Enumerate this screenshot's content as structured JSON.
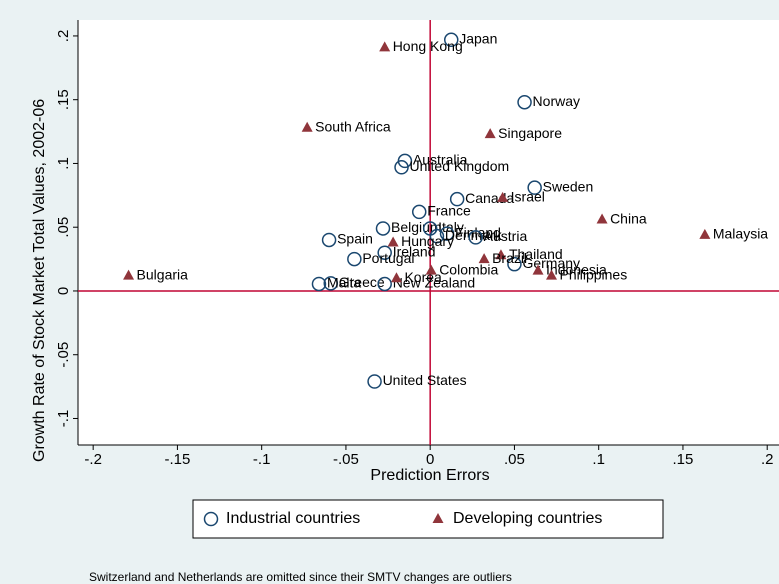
{
  "chart_data": {
    "type": "scatter",
    "y_label": "Growth Rate of Stock Market Total Values, 2002-06",
    "x_label": "Prediction Errors",
    "note": "Switzerland and Netherlands are omitted since their SMTV changes are outliers",
    "xlim": [
      -0.209,
      0.207
    ],
    "ylim": [
      -0.1208,
      0.2125
    ],
    "xticks": [
      {
        "value": -0.2,
        "label": "-.2"
      },
      {
        "value": -0.15,
        "label": "-.15"
      },
      {
        "value": -0.1,
        "label": "-.1"
      },
      {
        "value": -0.05,
        "label": "-.05"
      },
      0,
      {
        "value": 0.05,
        "label": ".05"
      },
      {
        "value": 0.1,
        "label": ".1"
      },
      {
        "value": 0.15,
        "label": ".15"
      },
      {
        "value": 0.2,
        "label": ".2"
      }
    ],
    "yticks": [
      {
        "value": 0.2,
        "label": ".2"
      },
      {
        "value": 0.15,
        "label": ".15"
      },
      {
        "value": 0.1,
        "label": ".1"
      },
      {
        "value": 0.05,
        "label": ".05"
      },
      0,
      {
        "value": -0.05,
        "label": "-.05"
      },
      {
        "value": -0.1,
        "label": "-.1"
      }
    ],
    "reference_lines": {
      "x": 0,
      "y": 0,
      "color": "#c10534"
    },
    "series": [
      {
        "name": "Industrial countries",
        "color": "#1a476f",
        "marker": "circle",
        "labels": [
          "Japan",
          "Norway",
          "Australia",
          "United Kingdom",
          "Sweden",
          "Canada",
          "France",
          "Belgium",
          "Italy",
          "Finland",
          "Denmark",
          "Austria",
          "Spain",
          "Ireland",
          "Portugal",
          "Germany",
          "Greece",
          "Malta",
          "New Zealand",
          "United States"
        ],
        "x": [
          0.0125,
          0.056,
          -0.015,
          -0.017,
          0.062,
          0.016,
          -0.0065,
          -0.028,
          0,
          0.01,
          0.004,
          0.027,
          -0.06,
          -0.027,
          -0.045,
          0.05,
          -0.059,
          -0.066,
          -0.027,
          -0.033
        ],
        "values": [
          0.197,
          0.148,
          0.102,
          0.097,
          0.081,
          0.072,
          0.062,
          0.049,
          0.049,
          0.045,
          0.043,
          0.042,
          0.04,
          0.03,
          0.025,
          0.021,
          0.006,
          0.0055,
          0.0055,
          -0.071
        ]
      },
      {
        "name": "Developing countries",
        "color": "#90353b",
        "marker": "triangle",
        "labels": [
          "Hong Kong",
          "South Africa",
          "Singapore",
          "Israel",
          "China",
          "Malaysia",
          "Hungary",
          "Thailand",
          "Brazil",
          "Indonesia",
          "Philippines",
          "Colombia",
          "Korea",
          "Bulgaria"
        ],
        "x": [
          -0.027,
          -0.073,
          0.0356,
          0.043,
          0.102,
          0.163,
          -0.022,
          0.042,
          0.032,
          0.064,
          0.072,
          0.0006,
          -0.02,
          -0.179
        ],
        "values": [
          0.191,
          0.128,
          0.123,
          0.073,
          0.056,
          0.044,
          0.038,
          0.028,
          0.025,
          0.016,
          0.012,
          0.016,
          0.01,
          0.012
        ]
      }
    ]
  }
}
